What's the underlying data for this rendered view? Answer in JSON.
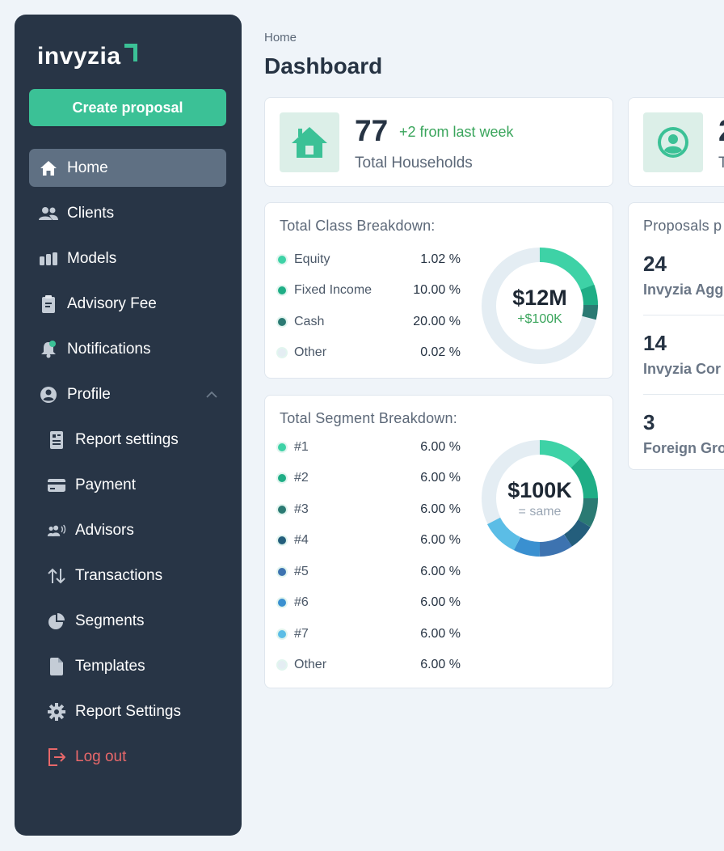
{
  "app": {
    "logo_text": "invyzia"
  },
  "sidebar": {
    "create_label": "Create proposal",
    "items": [
      {
        "label": "Home",
        "icon": "home-icon"
      },
      {
        "label": "Clients",
        "icon": "users-icon"
      },
      {
        "label": "Models",
        "icon": "bar-chart-icon"
      },
      {
        "label": "Advisory Fee",
        "icon": "clipboard-icon"
      },
      {
        "label": "Notifications",
        "icon": "bell-icon"
      },
      {
        "label": "Profile",
        "icon": "user-circle-icon"
      },
      {
        "label": "Report settings",
        "icon": "report-icon"
      },
      {
        "label": "Payment",
        "icon": "credit-card-icon"
      },
      {
        "label": "Advisors",
        "icon": "advisors-icon"
      },
      {
        "label": "Transactions",
        "icon": "arrows-icon"
      },
      {
        "label": "Segments",
        "icon": "pie-icon"
      },
      {
        "label": "Templates",
        "icon": "file-icon"
      },
      {
        "label": "Report Settings",
        "icon": "gear-icon"
      },
      {
        "label": "Log out",
        "icon": "logout-icon"
      }
    ]
  },
  "header": {
    "breadcrumb": "Home",
    "title": "Dashboard"
  },
  "stats": {
    "households": {
      "value": "77",
      "delta": "+2 from last week",
      "label": "Total Households"
    },
    "second": {
      "value": "2",
      "label": "T"
    }
  },
  "class_breakdown": {
    "title": "Total Class Breakdown:",
    "center_value": "$12M",
    "center_delta": "+$100K",
    "rows": [
      {
        "label": "Equity",
        "value": "1.02 %",
        "color": "#3ed2a6"
      },
      {
        "label": "Fixed Income",
        "value": "10.00 %",
        "color": "#1fae86"
      },
      {
        "label": "Cash",
        "value": "20.00 %",
        "color": "#2b7a73"
      },
      {
        "label": "Other",
        "value": "0.02 %",
        "color": "#e4edf3"
      }
    ]
  },
  "segment_breakdown": {
    "title": "Total Segment Breakdown:",
    "center_value": "$100K",
    "center_delta": "= same",
    "rows": [
      {
        "label": "#1",
        "value": "6.00 %",
        "color": "#3ed2a6"
      },
      {
        "label": "#2",
        "value": "6.00 %",
        "color": "#1fae86"
      },
      {
        "label": "#3",
        "value": "6.00 %",
        "color": "#2b7a73"
      },
      {
        "label": "#4",
        "value": "6.00 %",
        "color": "#245e7c"
      },
      {
        "label": "#5",
        "value": "6.00 %",
        "color": "#3d73b0"
      },
      {
        "label": "#6",
        "value": "6.00 %",
        "color": "#3a90d0"
      },
      {
        "label": "#7",
        "value": "6.00 %",
        "color": "#5bbde6"
      },
      {
        "label": "Other",
        "value": "6.00 %",
        "color": "#e4edf3"
      }
    ]
  },
  "proposals": {
    "title": "Proposals p",
    "items": [
      {
        "count": "24",
        "name": "Invyzia Agg"
      },
      {
        "count": "14",
        "name": "Invyzia Cor"
      },
      {
        "count": "3",
        "name": "Foreign Gro"
      }
    ]
  },
  "colors": {
    "accent": "#3bc196",
    "sidebar": "#283546",
    "danger": "#e8686a",
    "positive": "#3aa55c"
  }
}
